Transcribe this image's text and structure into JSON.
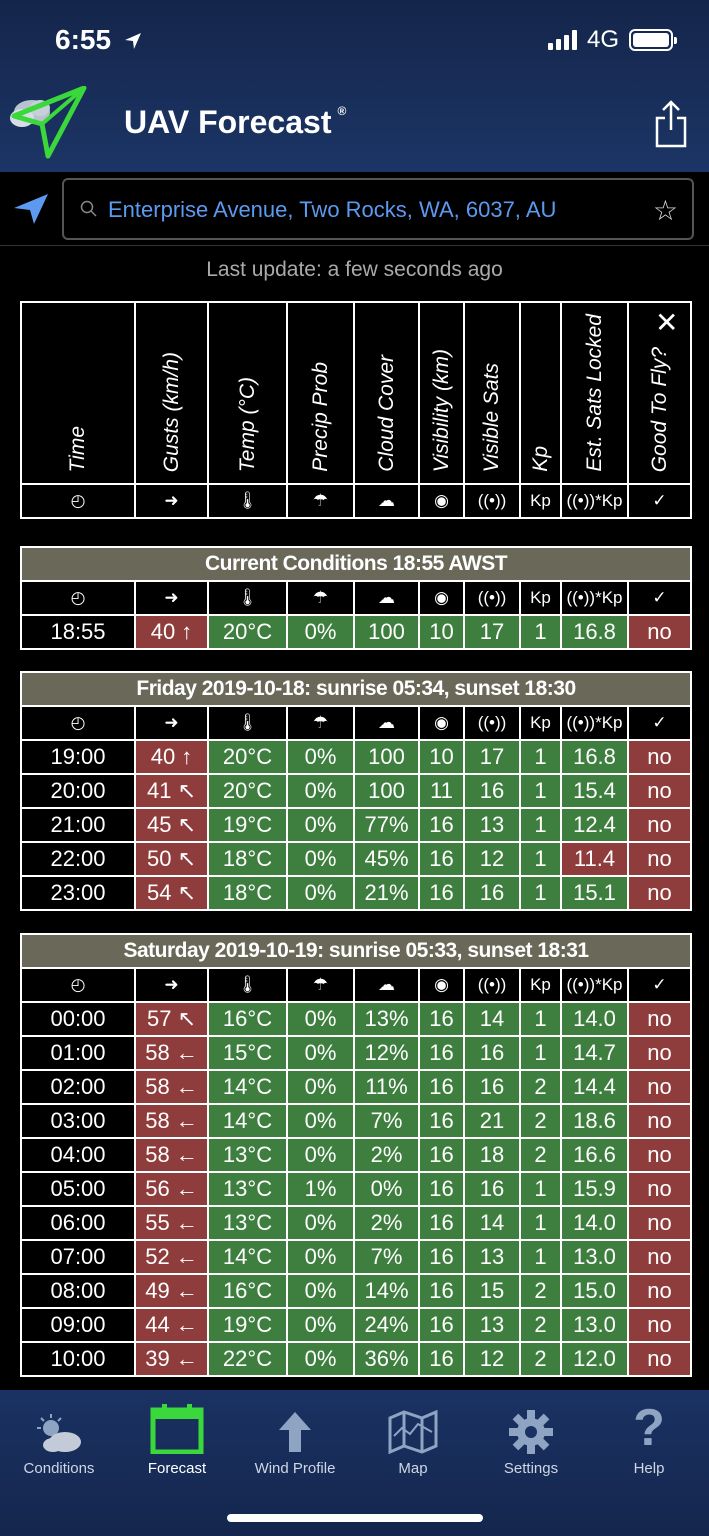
{
  "status": {
    "time": "6:55",
    "network": "4G"
  },
  "app": {
    "title": "UAV Forecast",
    "registered": "®"
  },
  "search": {
    "value": "Enterprise Avenue, Two Rocks, WA, 6037, AU"
  },
  "last_update": "Last update: a few seconds ago",
  "columns": [
    "Time",
    "Gusts (km/h)",
    "Temp (°C)",
    "Precip Prob",
    "Cloud Cover",
    "Visibility (km)",
    "Visible Sats",
    "Kp",
    "Est. Sats Locked",
    "Good To Fly?"
  ],
  "icons": {
    "time": "◴",
    "gusts": "➜",
    "temp": "🌡",
    "precip": "☂",
    "cloud": "☁",
    "vis": "◉",
    "sats": "((•))",
    "kp": "Kp",
    "locked": "((•))*Kp",
    "fly": "✓"
  },
  "current": {
    "title": "Current Conditions 18:55 AWST",
    "row": {
      "time": "18:55",
      "gusts": "40 ↑",
      "temp": "20°C",
      "precip": "0%",
      "cloud": "100",
      "vis": "10",
      "sats": "17",
      "kp": "1",
      "locked": "16.8",
      "fly": "no"
    }
  },
  "friday": {
    "title": "Friday 2019-10-18: sunrise 05:34, sunset 18:30",
    "rows": [
      {
        "time": "19:00",
        "gusts": "40 ↑",
        "temp": "20°C",
        "precip": "0%",
        "cloud": "100",
        "vis": "10",
        "sats": "17",
        "kp": "1",
        "locked": "16.8",
        "fly": "no"
      },
      {
        "time": "20:00",
        "gusts": "41 ↖",
        "temp": "20°C",
        "precip": "0%",
        "cloud": "100",
        "vis": "11",
        "sats": "16",
        "kp": "1",
        "locked": "15.4",
        "fly": "no"
      },
      {
        "time": "21:00",
        "gusts": "45 ↖",
        "temp": "19°C",
        "precip": "0%",
        "cloud": "77%",
        "vis": "16",
        "sats": "13",
        "kp": "1",
        "locked": "12.4",
        "fly": "no"
      },
      {
        "time": "22:00",
        "gusts": "50 ↖",
        "temp": "18°C",
        "precip": "0%",
        "cloud": "45%",
        "vis": "16",
        "sats": "12",
        "kp": "1",
        "locked": "11.4",
        "fly": "no"
      },
      {
        "time": "23:00",
        "gusts": "54 ↖",
        "temp": "18°C",
        "precip": "0%",
        "cloud": "21%",
        "vis": "16",
        "sats": "16",
        "kp": "1",
        "locked": "15.1",
        "fly": "no"
      }
    ]
  },
  "saturday": {
    "title": "Saturday 2019-10-19: sunrise 05:33, sunset 18:31",
    "rows": [
      {
        "time": "00:00",
        "gusts": "57 ↖",
        "temp": "16°C",
        "precip": "0%",
        "cloud": "13%",
        "vis": "16",
        "sats": "14",
        "kp": "1",
        "locked": "14.0",
        "fly": "no"
      },
      {
        "time": "01:00",
        "gusts": "58 ←",
        "temp": "15°C",
        "precip": "0%",
        "cloud": "12%",
        "vis": "16",
        "sats": "16",
        "kp": "1",
        "locked": "14.7",
        "fly": "no"
      },
      {
        "time": "02:00",
        "gusts": "58 ←",
        "temp": "14°C",
        "precip": "0%",
        "cloud": "11%",
        "vis": "16",
        "sats": "16",
        "kp": "2",
        "locked": "14.4",
        "fly": "no"
      },
      {
        "time": "03:00",
        "gusts": "58 ←",
        "temp": "14°C",
        "precip": "0%",
        "cloud": "7%",
        "vis": "16",
        "sats": "21",
        "kp": "2",
        "locked": "18.6",
        "fly": "no"
      },
      {
        "time": "04:00",
        "gusts": "58 ←",
        "temp": "13°C",
        "precip": "0%",
        "cloud": "2%",
        "vis": "16",
        "sats": "18",
        "kp": "2",
        "locked": "16.6",
        "fly": "no"
      },
      {
        "time": "05:00",
        "gusts": "56 ←",
        "temp": "13°C",
        "precip": "1%",
        "cloud": "0%",
        "vis": "16",
        "sats": "16",
        "kp": "1",
        "locked": "15.9",
        "fly": "no"
      },
      {
        "time": "06:00",
        "gusts": "55 ←",
        "temp": "13°C",
        "precip": "0%",
        "cloud": "2%",
        "vis": "16",
        "sats": "14",
        "kp": "1",
        "locked": "14.0",
        "fly": "no"
      },
      {
        "time": "07:00",
        "gusts": "52 ←",
        "temp": "14°C",
        "precip": "0%",
        "cloud": "7%",
        "vis": "16",
        "sats": "13",
        "kp": "1",
        "locked": "13.0",
        "fly": "no"
      },
      {
        "time": "08:00",
        "gusts": "49 ←",
        "temp": "16°C",
        "precip": "0%",
        "cloud": "14%",
        "vis": "16",
        "sats": "15",
        "kp": "2",
        "locked": "15.0",
        "fly": "no"
      },
      {
        "time": "09:00",
        "gusts": "44 ←",
        "temp": "19°C",
        "precip": "0%",
        "cloud": "24%",
        "vis": "16",
        "sats": "13",
        "kp": "2",
        "locked": "13.0",
        "fly": "no"
      },
      {
        "time": "10:00",
        "gusts": "39 ←",
        "temp": "22°C",
        "precip": "0%",
        "cloud": "36%",
        "vis": "16",
        "sats": "12",
        "kp": "2",
        "locked": "12.0",
        "fly": "no"
      }
    ]
  },
  "tabs": [
    {
      "label": "Conditions",
      "icon": "sun-cloud-icon"
    },
    {
      "label": "Forecast",
      "icon": "calendar-icon"
    },
    {
      "label": "Wind Profile",
      "icon": "arrow-up-icon"
    },
    {
      "label": "Map",
      "icon": "map-icon"
    },
    {
      "label": "Settings",
      "icon": "gear-icon"
    },
    {
      "label": "Help",
      "icon": "question-icon"
    }
  ],
  "colors": {
    "header": "#1c3566",
    "good": "#3e7f3f",
    "bad": "#8f3d3c",
    "section": "#6a6959",
    "accent_green": "#3ad83a",
    "link_blue": "#5b9af0"
  }
}
